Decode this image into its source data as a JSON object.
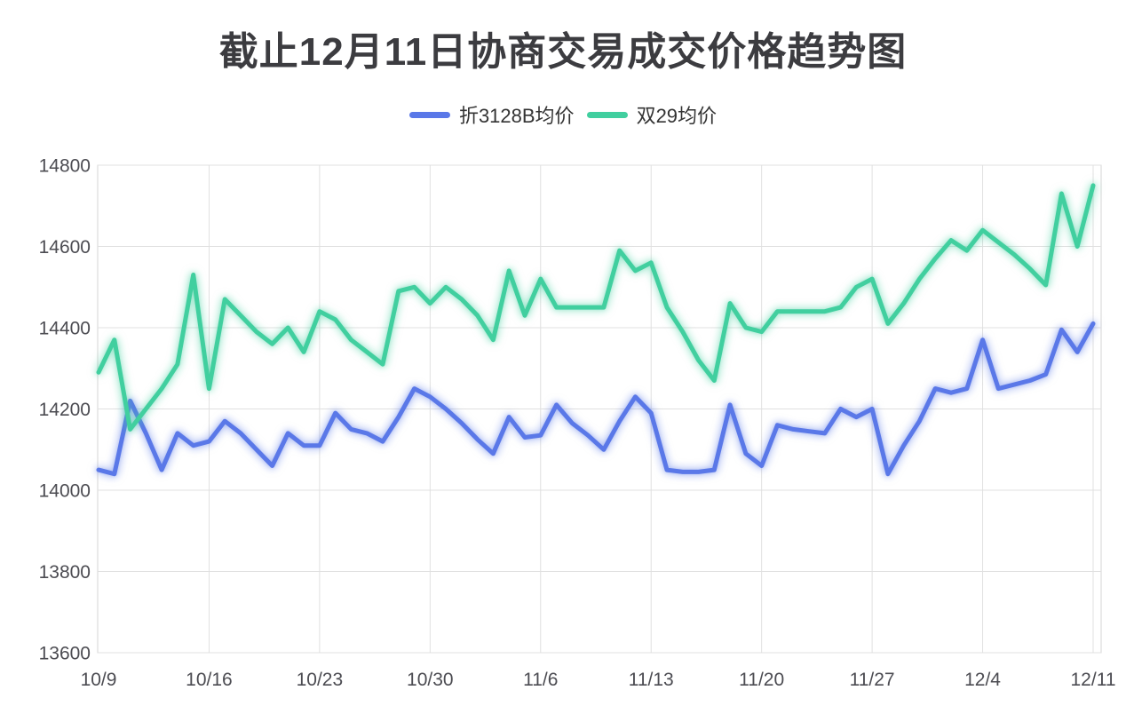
{
  "title": "截止12月11日协商交易成交价格趋势图",
  "chart_data": {
    "type": "line",
    "title": "截止12月11日协商交易成交价格趋势图",
    "x_tick_labels": [
      "10/9",
      "10/16",
      "10/23",
      "10/30",
      "11/6",
      "11/13",
      "11/20",
      "11/27",
      "12/4",
      "12/11"
    ],
    "x_tick_interval_days": 7,
    "num_points": 64,
    "ylim": [
      13600,
      14800
    ],
    "y_ticks": [
      14800,
      14600,
      14400,
      14200,
      14000,
      13800,
      13600
    ],
    "grid": true,
    "legend_position": "top-center",
    "series": [
      {
        "name": "折3128B均价",
        "color": "#5a78e8",
        "glow": "rgba(90,120,232,0.45)",
        "values": [
          14050,
          14040,
          14220,
          14140,
          14050,
          14140,
          14110,
          14120,
          14170,
          14140,
          14100,
          14060,
          14140,
          14110,
          14110,
          14190,
          14150,
          14140,
          14120,
          14180,
          14250,
          14230,
          14200,
          14165,
          14125,
          14090,
          14180,
          14130,
          14135,
          14210,
          14165,
          14135,
          14100,
          14170,
          14230,
          14190,
          14050,
          14045,
          14045,
          14050,
          14210,
          14090,
          14060,
          14160,
          14150,
          14145,
          14140,
          14200,
          14180,
          14200,
          14040,
          14110,
          14170,
          14250,
          14240,
          14250,
          14370,
          14250,
          14260,
          14270,
          14285,
          14395,
          14340,
          14410
        ]
      },
      {
        "name": "双29均价",
        "color": "#41cf9f",
        "glow": "rgba(65,207,159,0.45)",
        "values": [
          14290,
          14370,
          14150,
          14200,
          14250,
          14310,
          14530,
          14250,
          14470,
          14430,
          14390,
          14360,
          14400,
          14340,
          14440,
          14420,
          14370,
          14340,
          14310,
          14490,
          14500,
          14460,
          14500,
          14470,
          14430,
          14370,
          14540,
          14430,
          14520,
          14450,
          14450,
          14450,
          14450,
          14590,
          14540,
          14560,
          14450,
          14390,
          14320,
          14270,
          14460,
          14400,
          14390,
          14440,
          14440,
          14440,
          14440,
          14450,
          14500,
          14520,
          14410,
          14460,
          14520,
          14570,
          14615,
          14590,
          14640,
          14610,
          14580,
          14545,
          14505,
          14730,
          14600,
          14750
        ]
      }
    ],
    "styles": {
      "axis_text_color": "#4c4c52",
      "grid_color": "#e0e0e0",
      "border_color": "#d6d6d6",
      "title_color": "#3c3c40",
      "legend_text_color": "#333333",
      "background": "#ffffff"
    }
  }
}
